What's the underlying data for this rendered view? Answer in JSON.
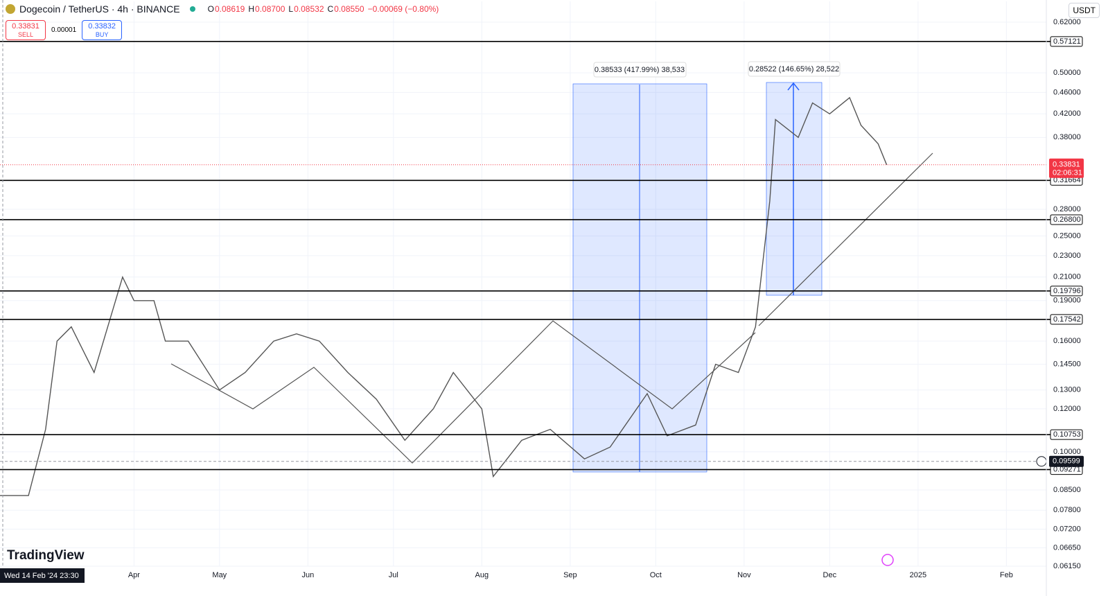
{
  "header": {
    "symbol": "Dogecoin / TetherUS · 4h · BINANCE",
    "ohlc": [
      {
        "key": "O",
        "value": "0.08619"
      },
      {
        "key": "H",
        "value": "0.08700"
      },
      {
        "key": "L",
        "value": "0.08532"
      },
      {
        "key": "C",
        "value": "0.08550"
      }
    ],
    "change": "−0.00069 (−0.80%)",
    "sell": {
      "price": "0.33831",
      "label": "SELL"
    },
    "spread": "0.00001",
    "buy": {
      "price": "0.33832",
      "label": "BUY"
    },
    "currency": "USDT"
  },
  "brand": "TradingView",
  "chart_data": {
    "type": "line",
    "color": "#555555",
    "log_scale": true,
    "x": [
      "2024-02-14",
      "2024-02-24",
      "2024-03-01",
      "2024-03-05",
      "2024-03-10",
      "2024-03-18",
      "2024-03-28",
      "2024-04-01",
      "2024-04-08",
      "2024-04-12",
      "2024-04-20",
      "2024-05-01",
      "2024-05-10",
      "2024-05-20",
      "2024-05-28",
      "2024-06-05",
      "2024-06-15",
      "2024-06-25",
      "2024-07-05",
      "2024-07-15",
      "2024-07-22",
      "2024-08-01",
      "2024-08-05",
      "2024-08-15",
      "2024-08-25",
      "2024-09-06",
      "2024-09-15",
      "2024-09-28",
      "2024-10-05",
      "2024-10-15",
      "2024-10-22",
      "2024-10-30",
      "2024-11-05",
      "2024-11-10",
      "2024-11-12",
      "2024-11-20",
      "2024-11-25",
      "2024-12-01",
      "2024-12-08",
      "2024-12-12",
      "2024-12-18",
      "2024-12-21"
    ],
    "values": [
      0.083,
      0.083,
      0.11,
      0.16,
      0.17,
      0.14,
      0.21,
      0.19,
      0.19,
      0.16,
      0.16,
      0.13,
      0.14,
      0.16,
      0.165,
      0.16,
      0.14,
      0.125,
      0.105,
      0.12,
      0.14,
      0.12,
      0.09,
      0.105,
      0.11,
      0.097,
      0.102,
      0.128,
      0.107,
      0.112,
      0.145,
      0.14,
      0.17,
      0.29,
      0.41,
      0.38,
      0.44,
      0.42,
      0.45,
      0.4,
      0.37,
      0.33831
    ],
    "xlim": [
      "2024-02-14",
      "2025-02-15"
    ],
    "xticks": [
      {
        "value": "2024-04-01",
        "label": "Apr"
      },
      {
        "value": "2024-05-01",
        "label": "May"
      },
      {
        "value": "2024-06-01",
        "label": "Jun"
      },
      {
        "value": "2024-07-01",
        "label": "Jul"
      },
      {
        "value": "2024-08-01",
        "label": "Aug"
      },
      {
        "value": "2024-09-01",
        "label": "Sep"
      },
      {
        "value": "2024-10-01",
        "label": "Oct"
      },
      {
        "value": "2024-11-01",
        "label": "Nov"
      },
      {
        "value": "2024-12-01",
        "label": "Dec"
      },
      {
        "value": "2025-01-01",
        "label": "2025"
      },
      {
        "value": "2025-02-01",
        "label": "Feb"
      }
    ],
    "crosshair_time": "Wed 14 Feb '24 23:30",
    "ylim": [
      0.0615,
      0.62
    ],
    "yticks": [
      {
        "value": 0.62,
        "label": "0.62000"
      },
      {
        "value": 0.5,
        "label": "0.50000"
      },
      {
        "value": 0.46,
        "label": "0.46000"
      },
      {
        "value": 0.42,
        "label": "0.42000"
      },
      {
        "value": 0.38,
        "label": "0.38000"
      },
      {
        "value": 0.28,
        "label": "0.28000"
      },
      {
        "value": 0.25,
        "label": "0.25000"
      },
      {
        "value": 0.23,
        "label": "0.23000"
      },
      {
        "value": 0.21,
        "label": "0.21000"
      },
      {
        "value": 0.19,
        "label": "0.19000"
      },
      {
        "value": 0.16,
        "label": "0.16000"
      },
      {
        "value": 0.145,
        "label": "0.14500"
      },
      {
        "value": 0.13,
        "label": "0.13000"
      },
      {
        "value": 0.12,
        "label": "0.12000"
      },
      {
        "value": 0.1,
        "label": "0.10000"
      },
      {
        "value": 0.085,
        "label": "0.08500"
      },
      {
        "value": 0.078,
        "label": "0.07800"
      },
      {
        "value": 0.072,
        "label": "0.07200"
      },
      {
        "value": 0.0665,
        "label": "0.06650"
      },
      {
        "value": 0.0615,
        "label": "0.06150"
      }
    ],
    "levels": [
      {
        "value": 0.57121,
        "label": "0.57121"
      },
      {
        "value": 0.31664,
        "label": "0.31664"
      },
      {
        "value": 0.268,
        "label": "0.26800"
      },
      {
        "value": 0.19796,
        "label": "0.19796"
      },
      {
        "value": 0.17542,
        "label": "0.17542"
      },
      {
        "value": 0.10753,
        "label": "0.10753"
      },
      {
        "value": 0.09271,
        "label": "0.09271"
      }
    ],
    "last_price": {
      "value": 0.33831,
      "label": "0.33831",
      "countdown": "02:06:31"
    },
    "crosshair_price": {
      "value": 0.09599,
      "label": "0.09599"
    },
    "measurements": [
      "0.38533 (417.99%) 38,533",
      "0.28522 (146.65%) 28,522"
    ]
  }
}
